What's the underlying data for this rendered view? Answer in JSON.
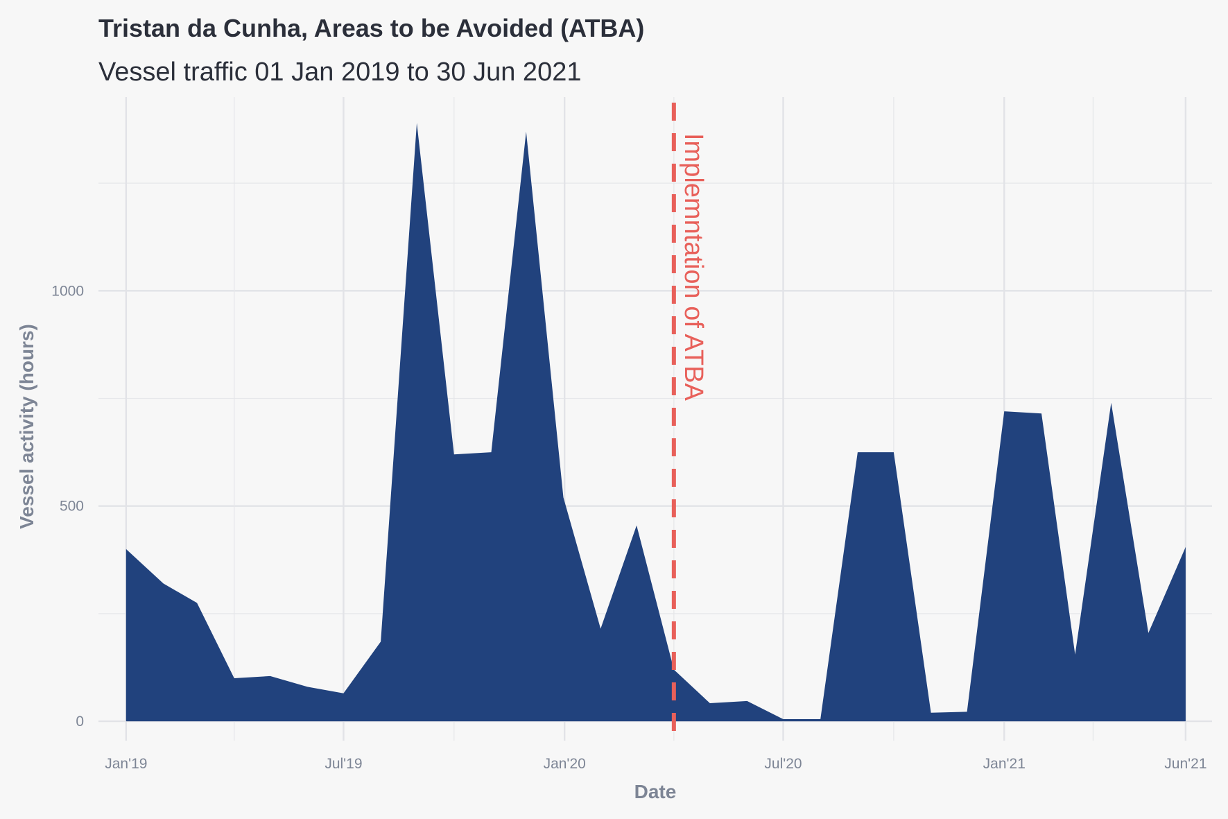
{
  "chart_data": {
    "type": "area",
    "title": "Tristan da Cunha, Areas to be Avoided (ATBA)",
    "subtitle": "Vessel traffic 01 Jan 2019 to 30 Jun 2021",
    "xlabel": "Date",
    "ylabel": "Vessel activity (hours)",
    "color": "#21427d",
    "ylim": [
      -45,
      1450
    ],
    "xlim": [
      "2018-12-09",
      "2021-06-23"
    ],
    "x_ticks": [
      {
        "date": "2019-01-01",
        "label": "Jan'19"
      },
      {
        "date": "2019-07-01",
        "label": "Jul'19"
      },
      {
        "date": "2020-01-01",
        "label": "Jan'20"
      },
      {
        "date": "2020-07-01",
        "label": "Jul'20"
      },
      {
        "date": "2021-01-01",
        "label": "Jan'21"
      },
      {
        "date": "2021-06-01",
        "label": "Jun'21"
      }
    ],
    "x_minor_dates": [
      "2019-04-01",
      "2019-10-01",
      "2020-04-01",
      "2020-10-01",
      "2021-03-16"
    ],
    "y_ticks": [
      0,
      500,
      1000
    ],
    "y_minor": [
      250,
      750,
      1250
    ],
    "series": [
      {
        "x": [
          "2019-01-01",
          "2019-02-01",
          "2019-03-01",
          "2019-04-01",
          "2019-05-01",
          "2019-06-01",
          "2019-07-01",
          "2019-08-01",
          "2019-08-31",
          "2019-10-01",
          "2019-11-01",
          "2019-11-30",
          "2019-12-31",
          "2020-01-31",
          "2020-03-01",
          "2020-04-01",
          "2020-05-01",
          "2020-06-01",
          "2020-07-01",
          "2020-08-01",
          "2020-09-01",
          "2020-10-01",
          "2020-11-01",
          "2020-12-01",
          "2021-01-01",
          "2021-02-01",
          "2021-03-01",
          "2021-03-31",
          "2021-05-01",
          "2021-06-01"
        ],
        "y": [
          400,
          320,
          275,
          100,
          105,
          80,
          65,
          185,
          1390,
          620,
          625,
          1370,
          520,
          215,
          455,
          120,
          42,
          47,
          5,
          5,
          625,
          625,
          20,
          22,
          720,
          715,
          155,
          740,
          205,
          405
        ]
      }
    ],
    "annotations": [
      {
        "type": "vline",
        "date": "2020-04-01",
        "label": "Implemntation of ATBA",
        "color": "#e8605a",
        "style": "dashed"
      }
    ],
    "grid": true,
    "legend": "none"
  }
}
